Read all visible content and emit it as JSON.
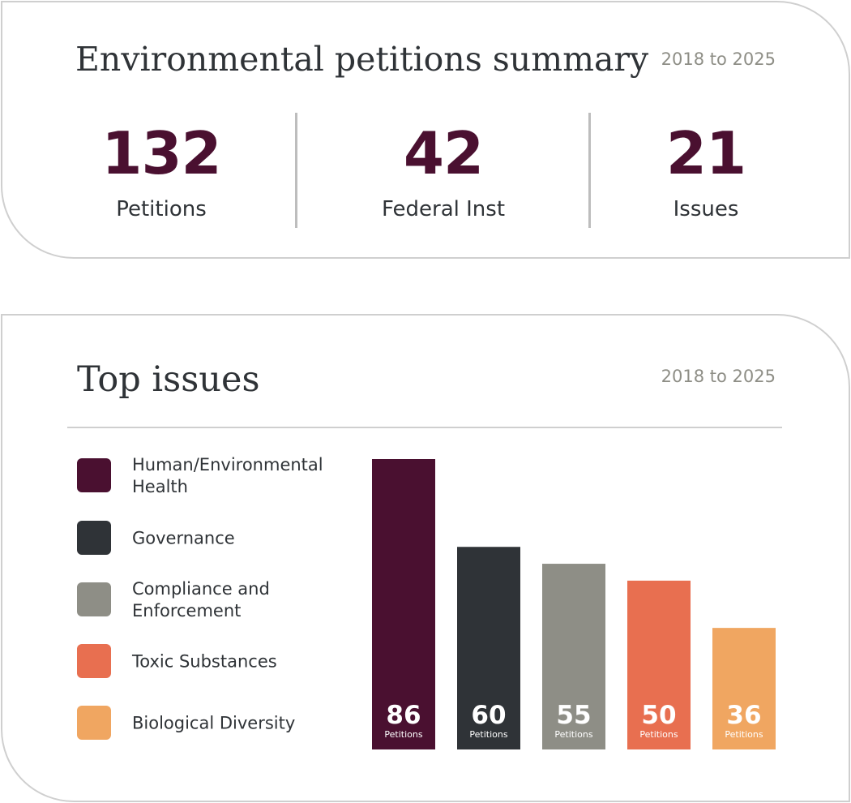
{
  "summary": {
    "title": "Environmental petitions summary",
    "range": "2018 to 2025",
    "stats": [
      {
        "value": "132",
        "label": "Petitions"
      },
      {
        "value": "42",
        "label": "Federal Inst"
      },
      {
        "value": "21",
        "label": "Issues"
      }
    ]
  },
  "issues": {
    "title": "Top issues",
    "range": "2018 to 2025"
  },
  "chart_data": {
    "type": "bar",
    "title": "Top issues",
    "categories": [
      "Human/Environmental Health",
      "Governance",
      "Compliance and Enforcement",
      "Toxic Substances",
      "Biological Diversity"
    ],
    "values": [
      86,
      60,
      55,
      50,
      36
    ],
    "value_unit_label": "Petitions",
    "colors": [
      "#4a1030",
      "#2f3337",
      "#8e8e86",
      "#e86f50",
      "#f0a661"
    ],
    "legend": {
      "position": "left",
      "items": [
        {
          "label": "Human/Environmental Health",
          "color": "#4a1030"
        },
        {
          "label": "Governance",
          "color": "#2f3337"
        },
        {
          "label": "Compliance and Enforcement",
          "color": "#8e8e86"
        },
        {
          "label": "Toxic Substances",
          "color": "#e86f50"
        },
        {
          "label": "Biological Diversity",
          "color": "#f0a661"
        }
      ]
    },
    "grid": false,
    "ylim": [
      0,
      86
    ]
  }
}
